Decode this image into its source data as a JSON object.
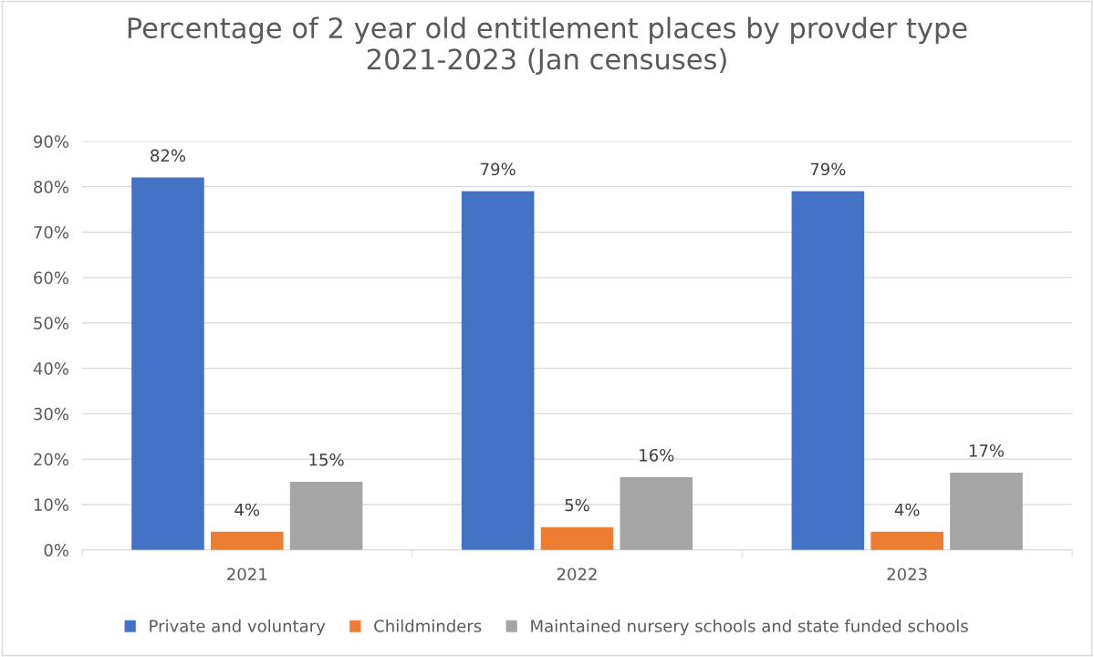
{
  "chart_data": {
    "type": "bar",
    "title": "Percentage of 2 year old entitlement places by provder type\n2021-2023 (Jan censuses)",
    "categories": [
      "2021",
      "2022",
      "2023"
    ],
    "series": [
      {
        "name": "Private and voluntary",
        "color": "#4472c4",
        "values": [
          82,
          79,
          79
        ],
        "value_labels": [
          "82%",
          "79%",
          "79%"
        ]
      },
      {
        "name": "Childminders",
        "color": "#ed7d31",
        "values": [
          4,
          5,
          4
        ],
        "value_labels": [
          "4%",
          "5%",
          "4%"
        ]
      },
      {
        "name": "Maintained nursery schools and state funded schools",
        "color": "#a5a5a5",
        "values": [
          15,
          16,
          17
        ],
        "value_labels": [
          "15%",
          "16%",
          "17%"
        ]
      }
    ],
    "ylim": [
      0,
      90
    ],
    "yticks": [
      {
        "value": 0,
        "label": "0%"
      },
      {
        "value": 10,
        "label": "10%"
      },
      {
        "value": 20,
        "label": "20%"
      },
      {
        "value": 30,
        "label": "30%"
      },
      {
        "value": 40,
        "label": "40%"
      },
      {
        "value": 50,
        "label": "50%"
      },
      {
        "value": 60,
        "label": "60%"
      },
      {
        "value": 70,
        "label": "70%"
      },
      {
        "value": 80,
        "label": "80%"
      },
      {
        "value": 90,
        "label": "90%"
      }
    ],
    "grid": "y",
    "legend": "bottom"
  }
}
